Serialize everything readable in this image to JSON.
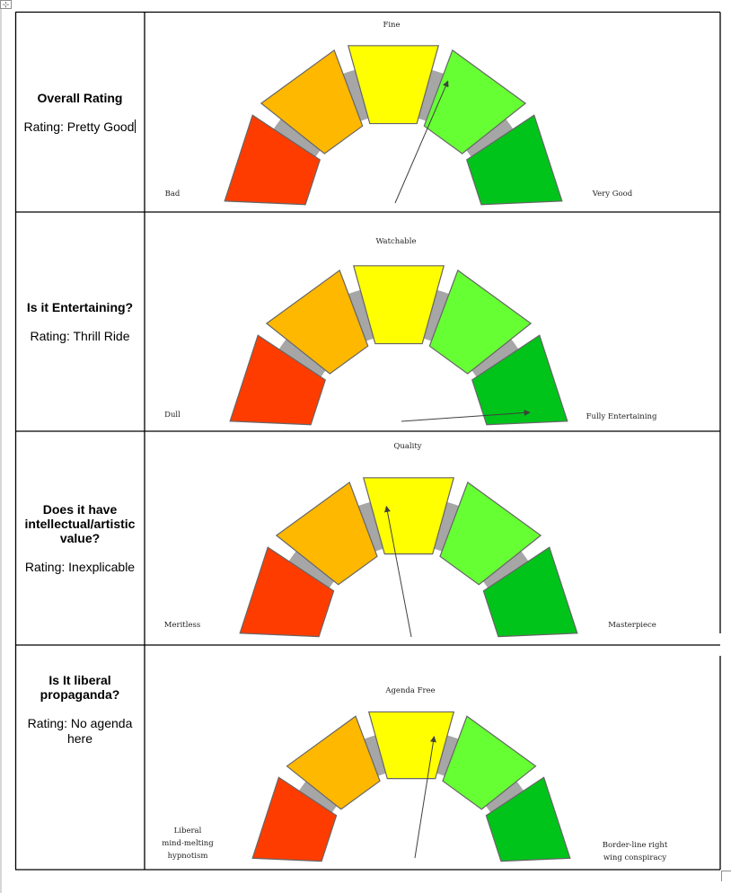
{
  "rows": [
    {
      "question": "Overall Rating",
      "rating_label": "Rating:",
      "rating_value": "Pretty Good",
      "gauge": {
        "top_label": "Fine",
        "left_label": [
          "Bad"
        ],
        "right_label": [
          "Very Good"
        ],
        "needle_segment": "Very Good-leaning",
        "needle_value": 0.63
      }
    },
    {
      "question": "Is it Entertaining?",
      "rating_label": "Rating:",
      "rating_value": "Thrill Ride",
      "gauge": {
        "top_label": "Watchable",
        "left_label": [
          "Dull"
        ],
        "right_label": [
          "Fully Entertaining"
        ],
        "needle_value": 0.97
      }
    },
    {
      "question": "Does it have intellectual/artistic value?",
      "rating_label": "Rating:",
      "rating_value": "Inexplicable",
      "gauge": {
        "top_label": "Quality",
        "left_label": [
          "Meritless"
        ],
        "right_label": [
          "Masterpiece"
        ],
        "needle_value": 0.44
      }
    },
    {
      "question": "Is It liberal propaganda?",
      "rating_label": "Rating:",
      "rating_value": "No agenda here",
      "gauge": {
        "top_label": "Agenda Free",
        "left_label": [
          "Liberal",
          "mind-melting",
          "hypnotism"
        ],
        "right_label": [
          "Border-line right",
          "wing conspiracy"
        ],
        "needle_value": 0.55
      }
    }
  ],
  "colors": {
    "red": "#ff3c00",
    "orange": "#ffb800",
    "yellow": "#ffff00",
    "light_green": "#66ff33",
    "green": "#00c41a",
    "gray_arc": "#a6a6a6",
    "segment_border": "#666666",
    "needle": "#404040",
    "table_border": "#000000"
  },
  "icons": {
    "move_handle": "move-handle-icon",
    "resize_handle": "resize-handle-icon"
  }
}
